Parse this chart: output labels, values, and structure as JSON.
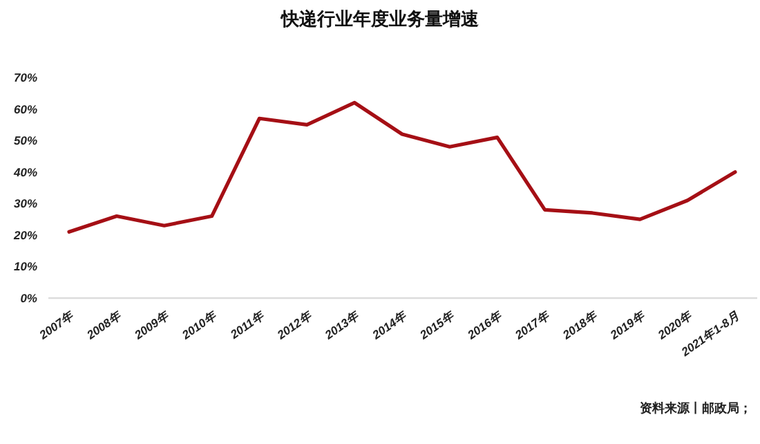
{
  "chart_data": {
    "type": "line",
    "title": "快递行业年度业务量增速",
    "categories": [
      "2007年",
      "2008年",
      "2009年",
      "2010年",
      "2011年",
      "2012年",
      "2013年",
      "2014年",
      "2015年",
      "2016年",
      "2017年",
      "2018年",
      "2019年",
      "2020年",
      "2021年1-8月"
    ],
    "series": [
      {
        "color": "#a50f15",
        "values": [
          21,
          26,
          23,
          26,
          57,
          55,
          62,
          52,
          48,
          51,
          28,
          27,
          25,
          31,
          40
        ]
      }
    ],
    "ylim": [
      0,
      70
    ],
    "yticks": [
      {
        "value": 0,
        "label": "0%"
      },
      {
        "value": 10,
        "label": "10%"
      },
      {
        "value": 20,
        "label": "20%"
      },
      {
        "value": 30,
        "label": "30%"
      },
      {
        "value": 40,
        "label": "40%"
      },
      {
        "value": 50,
        "label": "50%"
      },
      {
        "value": 60,
        "label": "60%"
      },
      {
        "value": 70,
        "label": "70%"
      }
    ],
    "grid": false,
    "marker": "none",
    "line_style": "solid",
    "annotations": [
      "资料来源丨邮政局；"
    ]
  }
}
